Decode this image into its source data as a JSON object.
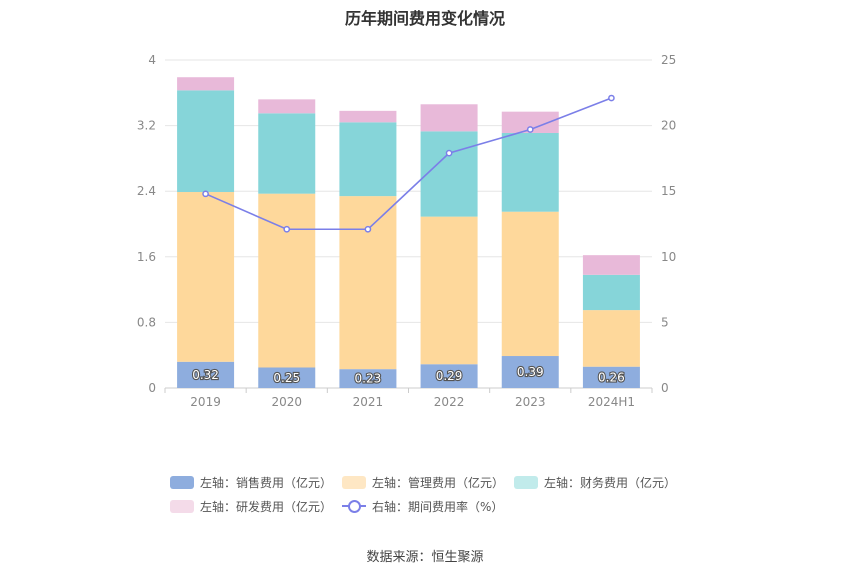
{
  "chart_data": {
    "type": "bar",
    "title": "历年期间费用变化情况",
    "categories": [
      "2019",
      "2020",
      "2021",
      "2022",
      "2023",
      "2024H1"
    ],
    "left_axis": {
      "min": 0,
      "max": 4,
      "ticks": [
        "0",
        "0.8",
        "1.6",
        "2.4",
        "3.2",
        "4"
      ]
    },
    "right_axis": {
      "min": 0,
      "max": 25,
      "ticks": [
        "0",
        "5",
        "10",
        "15",
        "20",
        "25"
      ]
    },
    "series": [
      {
        "name": "左轴：销售费用（亿元）",
        "axis": "left",
        "kind": "bar",
        "color": "#8eadde",
        "values": [
          0.32,
          0.25,
          0.23,
          0.29,
          0.39,
          0.26
        ],
        "labels": [
          "0.32",
          "0.25",
          "0.23",
          "0.29",
          "0.39",
          "0.26"
        ]
      },
      {
        "name": "左轴：管理费用（亿元）",
        "axis": "left",
        "kind": "bar",
        "color": "#fed89b",
        "values": [
          2.07,
          2.12,
          2.11,
          1.8,
          1.76,
          0.69
        ]
      },
      {
        "name": "左轴：财务费用（亿元）",
        "axis": "left",
        "kind": "bar",
        "color": "#86d5d9",
        "values": [
          1.24,
          0.98,
          0.9,
          1.04,
          0.96,
          0.43
        ]
      },
      {
        "name": "左轴：研发费用（亿元）",
        "axis": "left",
        "kind": "bar",
        "color": "#e8b9d9",
        "values": [
          0.16,
          0.17,
          0.14,
          0.33,
          0.26,
          0.24
        ]
      },
      {
        "name": "右轴：期间费用率（%）",
        "axis": "right",
        "kind": "line",
        "color": "#7b7fe8",
        "values": [
          14.8,
          12.1,
          12.1,
          17.9,
          19.7,
          22.1
        ]
      }
    ],
    "legend_position": "bottom",
    "grid": true
  },
  "legend_colors": {
    "sales": "#8eadde",
    "admin": "#fee7c4",
    "finance": "#c1ebeb",
    "rnd": "#f4dbe9"
  },
  "source": "数据来源：恒生聚源"
}
